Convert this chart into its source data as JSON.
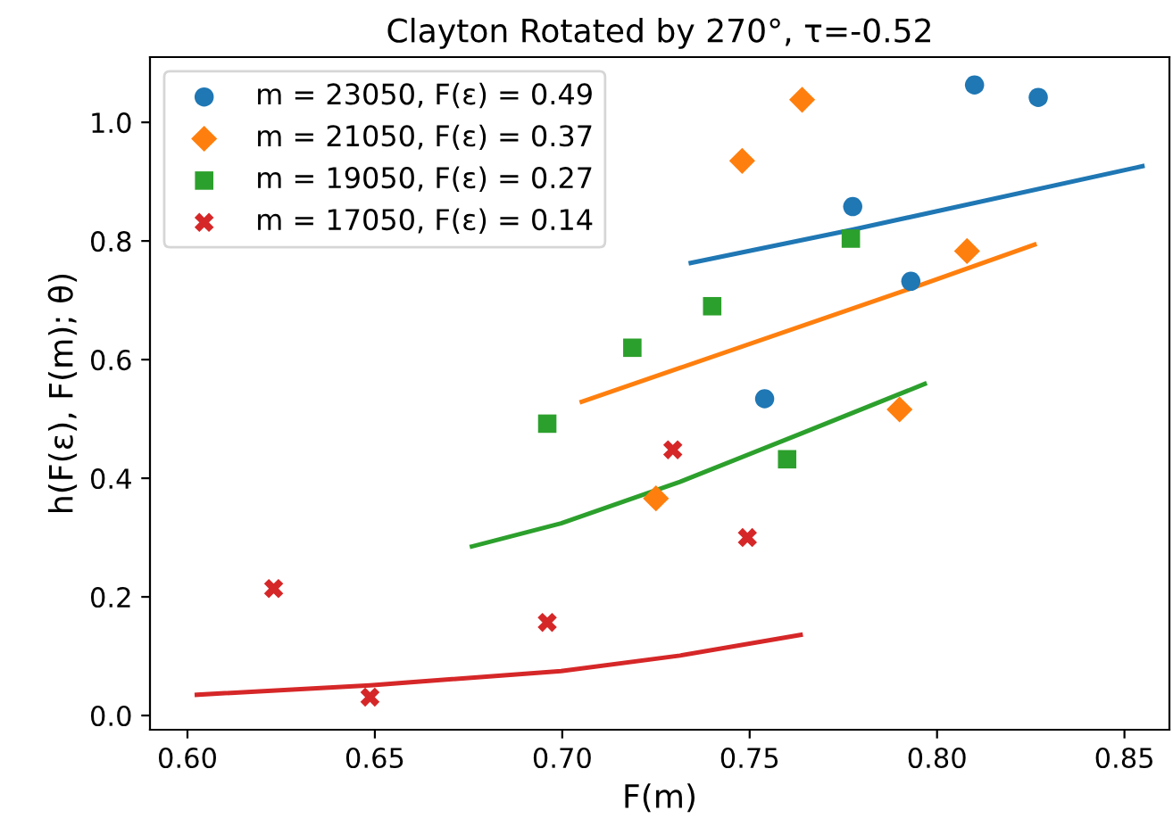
{
  "chart_data": {
    "type": "scatter",
    "title": "Clayton Rotated by 270°, τ=-0.52",
    "xlabel": "F(m)",
    "ylabel": "h(F(ε), F(m); θ)",
    "xlim": [
      0.59,
      0.862
    ],
    "ylim": [
      -0.024,
      1.11
    ],
    "xticks": [
      {
        "value": 0.6,
        "label": "0.60"
      },
      {
        "value": 0.65,
        "label": "0.65"
      },
      {
        "value": 0.7,
        "label": "0.70"
      },
      {
        "value": 0.75,
        "label": "0.75"
      },
      {
        "value": 0.8,
        "label": "0.80"
      },
      {
        "value": 0.85,
        "label": "0.85"
      }
    ],
    "yticks": [
      {
        "value": 0,
        "label": "0.0"
      },
      {
        "value": 0.2,
        "label": "0.2"
      },
      {
        "value": 0.4,
        "label": "0.4"
      },
      {
        "value": 0.6,
        "label": "0.6"
      },
      {
        "value": 0.8,
        "label": "0.8"
      },
      {
        "value": 1.0,
        "label": "1.0"
      }
    ],
    "grid": false,
    "legend": "top left",
    "series": [
      {
        "name": "m = 23050, F(ε) = 0.49",
        "color": "#1f77b4",
        "marker": "circle",
        "x": [
          0.754,
          0.81,
          0.827,
          0.7775,
          0.793
        ],
        "values": [
          0.534,
          1.063,
          1.042,
          0.858,
          0.732
        ]
      },
      {
        "name": "m = 21050, F(ε) = 0.37",
        "color": "#ff7f0e",
        "marker": "diamond",
        "x": [
          0.764,
          0.748,
          0.808,
          0.79,
          0.725
        ],
        "values": [
          1.038,
          0.935,
          0.783,
          0.516,
          0.366
        ]
      },
      {
        "name": "m = 19050, F(ε) = 0.27",
        "color": "#2ca02c",
        "marker": "square",
        "x": [
          0.696,
          0.7187,
          0.74,
          0.777,
          0.76
        ],
        "values": [
          0.492,
          0.62,
          0.69,
          0.804,
          0.432
        ]
      },
      {
        "name": "m = 17050, F(ε) = 0.14",
        "color": "#d62728",
        "marker": "cross",
        "x": [
          0.623,
          0.6487,
          0.696,
          0.7295,
          0.7494
        ],
        "values": [
          0.214,
          0.031,
          0.157,
          0.448,
          0.3
        ]
      },
      {
        "type": "line",
        "color": "#1f77b4",
        "marker": "none",
        "x": [
          0.7343,
          0.7774,
          0.8548
        ],
        "values": [
          0.763,
          0.819,
          0.926
        ]
      },
      {
        "type": "line",
        "color": "#ff7f0e",
        "marker": "none",
        "x": [
          0.7052,
          0.7314,
          0.793,
          0.826
        ],
        "values": [
          0.529,
          0.586,
          0.72,
          0.794
        ]
      },
      {
        "type": "line",
        "color": "#2ca02c",
        "marker": "none",
        "x": [
          0.6759,
          0.6997,
          0.7314,
          0.7632,
          0.7967
        ],
        "values": [
          0.285,
          0.324,
          0.394,
          0.474,
          0.559
        ]
      },
      {
        "type": "line",
        "color": "#d62728",
        "marker": "none",
        "x": [
          0.6025,
          0.6487,
          0.6997,
          0.7314,
          0.7636
        ],
        "values": [
          0.035,
          0.051,
          0.075,
          0.101,
          0.136
        ]
      }
    ]
  }
}
